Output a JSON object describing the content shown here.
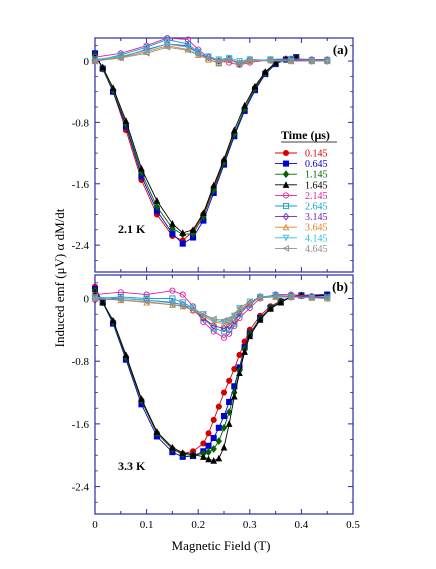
{
  "figure": {
    "ylabel": "Induced emf (μV) α dM/dt",
    "xlabel": "Magnetic Field (T)",
    "legend_title": "Time (μs)",
    "x_ticks": [
      "0",
      "0.1",
      "0.2",
      "0.3",
      "0.4",
      "0.5"
    ],
    "y_ticks": [
      "0",
      "-0.8",
      "-1.6",
      "-2.4"
    ]
  },
  "chart_data": [
    {
      "type": "line",
      "panel_label": "(a)",
      "annotation": "2.1 K",
      "xlim": [
        0,
        0.5
      ],
      "ylim": [
        -2.75,
        0.3
      ],
      "legend_position": "right, middle",
      "grid": false,
      "series": [
        {
          "name": "0.145",
          "color": "#d40000",
          "marker": "filled-circle",
          "x": [
            0,
            0.015,
            0.035,
            0.06,
            0.09,
            0.12,
            0.15,
            0.17,
            0.19,
            0.21,
            0.23,
            0.25,
            0.27,
            0.29,
            0.31,
            0.33,
            0.35,
            0.37,
            0.39
          ],
          "y": [
            0.1,
            -0.1,
            -0.4,
            -0.9,
            -1.55,
            -2.0,
            -2.28,
            -2.34,
            -2.22,
            -2.0,
            -1.65,
            -1.3,
            -0.95,
            -0.62,
            -0.35,
            -0.15,
            -0.02,
            0.02,
            0.05
          ]
        },
        {
          "name": "0.645",
          "color": "#0000d4",
          "marker": "filled-square",
          "x": [
            0,
            0.015,
            0.035,
            0.06,
            0.09,
            0.12,
            0.15,
            0.17,
            0.19,
            0.21,
            0.23,
            0.25,
            0.27,
            0.29,
            0.31,
            0.33,
            0.35,
            0.37,
            0.39
          ],
          "y": [
            0.1,
            -0.1,
            -0.4,
            -0.85,
            -1.5,
            -1.95,
            -2.25,
            -2.38,
            -2.3,
            -2.08,
            -1.72,
            -1.35,
            -0.98,
            -0.65,
            -0.38,
            -0.17,
            -0.04,
            0.02,
            0.05
          ]
        },
        {
          "name": "1.145",
          "color": "#006400",
          "marker": "filled-diamond",
          "x": [
            0,
            0.015,
            0.035,
            0.06,
            0.09,
            0.12,
            0.15,
            0.17,
            0.19,
            0.21,
            0.23,
            0.25,
            0.27,
            0.29,
            0.31,
            0.33,
            0.35,
            0.37,
            0.39
          ],
          "y": [
            0.08,
            -0.1,
            -0.38,
            -0.82,
            -1.45,
            -1.9,
            -2.18,
            -2.26,
            -2.25,
            -2.03,
            -1.68,
            -1.32,
            -0.95,
            -0.62,
            -0.36,
            -0.16,
            -0.03,
            0.02,
            0.04
          ]
        },
        {
          "name": "1.645",
          "color": "#000000",
          "marker": "filled-triangle",
          "x": [
            0,
            0.015,
            0.035,
            0.06,
            0.09,
            0.12,
            0.15,
            0.17,
            0.19,
            0.21,
            0.23,
            0.25,
            0.27,
            0.29,
            0.31,
            0.33,
            0.35,
            0.37,
            0.39
          ],
          "y": [
            0.06,
            -0.08,
            -0.35,
            -0.78,
            -1.4,
            -1.82,
            -2.12,
            -2.24,
            -2.2,
            -1.98,
            -1.62,
            -1.28,
            -0.9,
            -0.58,
            -0.33,
            -0.14,
            -0.02,
            0.03,
            0.04
          ]
        },
        {
          "name": "2.145",
          "color": "#e0209a",
          "marker": "open-circle",
          "x": [
            0,
            0.05,
            0.1,
            0.14,
            0.18,
            0.2,
            0.22,
            0.24,
            0.26,
            0.28,
            0.3,
            0.34,
            0.38,
            0.42,
            0.45
          ],
          "y": [
            0.05,
            0.1,
            0.2,
            0.3,
            0.28,
            0.15,
            0.05,
            0.0,
            -0.02,
            -0.05,
            -0.02,
            0.02,
            0.03,
            0.02,
            0.02
          ]
        },
        {
          "name": "2.645",
          "color": "#10a0c8",
          "marker": "open-square",
          "x": [
            0,
            0.05,
            0.1,
            0.14,
            0.18,
            0.2,
            0.22,
            0.24,
            0.26,
            0.28,
            0.3,
            0.34,
            0.38,
            0.42,
            0.45
          ],
          "y": [
            0.0,
            0.08,
            0.18,
            0.28,
            0.22,
            0.12,
            0.02,
            -0.03,
            0.02,
            -0.04,
            0.0,
            0.02,
            0.02,
            0.01,
            0.01
          ]
        },
        {
          "name": "3.145",
          "color": "#7020c0",
          "marker": "open-diamond",
          "x": [
            0,
            0.05,
            0.1,
            0.14,
            0.18,
            0.2,
            0.22,
            0.24,
            0.26,
            0.28,
            0.3,
            0.34,
            0.38,
            0.42,
            0.45
          ],
          "y": [
            0.0,
            0.05,
            0.15,
            0.22,
            0.2,
            0.1,
            0.05,
            0.0,
            0.03,
            -0.03,
            0.02,
            0.01,
            0.01,
            0.0,
            0.0
          ]
        },
        {
          "name": "3.645",
          "color": "#e08020",
          "marker": "open-triangle",
          "x": [
            0,
            0.05,
            0.1,
            0.14,
            0.18,
            0.2,
            0.22,
            0.24,
            0.26,
            0.28,
            0.3,
            0.34,
            0.38,
            0.42,
            0.45
          ],
          "y": [
            0.0,
            0.05,
            0.12,
            0.2,
            0.15,
            0.08,
            0.02,
            -0.02,
            0.02,
            -0.02,
            0.0,
            0.01,
            0.0,
            0.0,
            0.0
          ]
        },
        {
          "name": "4.145",
          "color": "#30c0e0",
          "marker": "open-inverted-triangle",
          "x": [
            0,
            0.05,
            0.1,
            0.14,
            0.18,
            0.2,
            0.22,
            0.24,
            0.26,
            0.28,
            0.3,
            0.34,
            0.38,
            0.42,
            0.45
          ],
          "y": [
            0.02,
            0.06,
            0.14,
            0.22,
            0.18,
            0.1,
            0.06,
            0.02,
            0.04,
            0.0,
            0.02,
            0.01,
            0.0,
            0.0,
            0.0
          ]
        },
        {
          "name": "4.645",
          "color": "#909090",
          "marker": "open-triangle-left",
          "x": [
            0,
            0.05,
            0.1,
            0.14,
            0.18,
            0.2,
            0.22,
            0.24,
            0.26,
            0.28,
            0.3,
            0.34,
            0.38,
            0.42,
            0.45
          ],
          "y": [
            0.0,
            0.04,
            0.1,
            0.18,
            0.14,
            0.08,
            0.04,
            0.0,
            0.02,
            -0.02,
            0.01,
            0.0,
            0.0,
            0.0,
            0.0
          ]
        }
      ]
    },
    {
      "type": "line",
      "panel_label": "(b)",
      "annotation": "3.3 K",
      "xlim": [
        0,
        0.5
      ],
      "ylim": [
        -2.75,
        0.3
      ],
      "grid": false,
      "series": [
        {
          "name": "0.145",
          "color": "#d40000",
          "marker": "filled-circle",
          "x": [
            0,
            0.015,
            0.035,
            0.06,
            0.09,
            0.12,
            0.15,
            0.17,
            0.19,
            0.21,
            0.22,
            0.23,
            0.24,
            0.25,
            0.26,
            0.27,
            0.28,
            0.29,
            0.3,
            0.32,
            0.34,
            0.36,
            0.38,
            0.4,
            0.45
          ],
          "y": [
            0.15,
            -0.05,
            -0.3,
            -0.75,
            -1.3,
            -1.72,
            -1.92,
            -1.98,
            -1.95,
            -1.85,
            -1.72,
            -1.55,
            -1.38,
            -1.2,
            -1.05,
            -0.9,
            -0.72,
            -0.55,
            -0.4,
            -0.22,
            -0.1,
            -0.03,
            0.02,
            0.04,
            0.05
          ]
        },
        {
          "name": "0.645",
          "color": "#0000d4",
          "marker": "filled-square",
          "x": [
            0,
            0.015,
            0.035,
            0.06,
            0.09,
            0.12,
            0.15,
            0.17,
            0.19,
            0.21,
            0.22,
            0.23,
            0.24,
            0.25,
            0.26,
            0.27,
            0.28,
            0.29,
            0.3,
            0.32,
            0.34,
            0.36,
            0.38,
            0.4,
            0.45
          ],
          "y": [
            0.12,
            -0.05,
            -0.32,
            -0.78,
            -1.35,
            -1.76,
            -1.96,
            -2.02,
            -2.01,
            -1.95,
            -1.88,
            -1.78,
            -1.65,
            -1.5,
            -1.32,
            -1.12,
            -0.88,
            -0.62,
            -0.45,
            -0.25,
            -0.12,
            -0.04,
            0.02,
            0.04,
            0.05
          ]
        },
        {
          "name": "1.145",
          "color": "#006400",
          "marker": "filled-diamond",
          "x": [
            0,
            0.015,
            0.035,
            0.06,
            0.09,
            0.12,
            0.15,
            0.17,
            0.19,
            0.21,
            0.22,
            0.23,
            0.24,
            0.25,
            0.26,
            0.27,
            0.28,
            0.29,
            0.3,
            0.32,
            0.34,
            0.36,
            0.38,
            0.4,
            0.45
          ],
          "y": [
            0.1,
            -0.05,
            -0.3,
            -0.75,
            -1.3,
            -1.72,
            -1.92,
            -1.99,
            -2.0,
            -1.98,
            -1.96,
            -1.92,
            -1.82,
            -1.65,
            -1.45,
            -1.2,
            -0.92,
            -0.65,
            -0.46,
            -0.26,
            -0.12,
            -0.04,
            0.02,
            0.04,
            0.04
          ]
        },
        {
          "name": "1.645",
          "color": "#000000",
          "marker": "filled-triangle",
          "x": [
            0,
            0.015,
            0.035,
            0.06,
            0.09,
            0.12,
            0.15,
            0.17,
            0.19,
            0.21,
            0.22,
            0.23,
            0.24,
            0.25,
            0.26,
            0.27,
            0.28,
            0.29,
            0.3,
            0.32,
            0.34,
            0.36,
            0.38,
            0.4,
            0.45
          ],
          "y": [
            0.08,
            -0.05,
            -0.28,
            -0.72,
            -1.28,
            -1.7,
            -1.9,
            -1.97,
            -1.99,
            -2.02,
            -2.05,
            -2.07,
            -2.04,
            -1.9,
            -1.6,
            -1.25,
            -0.95,
            -0.68,
            -0.48,
            -0.27,
            -0.13,
            -0.05,
            0.02,
            0.04,
            0.04
          ]
        },
        {
          "name": "2.145",
          "color": "#e0209a",
          "marker": "open-circle",
          "x": [
            0,
            0.05,
            0.1,
            0.15,
            0.17,
            0.19,
            0.21,
            0.23,
            0.25,
            0.26,
            0.27,
            0.28,
            0.3,
            0.32,
            0.35,
            0.38,
            0.42,
            0.45
          ],
          "y": [
            0.05,
            0.08,
            0.05,
            0.1,
            0.05,
            -0.1,
            -0.3,
            -0.42,
            -0.5,
            -0.45,
            -0.35,
            -0.25,
            -0.12,
            0.0,
            0.05,
            0.05,
            0.03,
            0.02
          ]
        },
        {
          "name": "2.645",
          "color": "#10a0c8",
          "marker": "open-square",
          "x": [
            0,
            0.05,
            0.1,
            0.15,
            0.17,
            0.19,
            0.21,
            0.23,
            0.25,
            0.26,
            0.27,
            0.28,
            0.3,
            0.32,
            0.35,
            0.38,
            0.42,
            0.45
          ],
          "y": [
            0.0,
            0.02,
            0.0,
            0.0,
            -0.05,
            -0.12,
            -0.25,
            -0.38,
            -0.42,
            -0.4,
            -0.32,
            -0.2,
            -0.08,
            0.02,
            0.04,
            0.03,
            0.02,
            0.02
          ]
        },
        {
          "name": "3.145",
          "color": "#7020c0",
          "marker": "open-diamond",
          "x": [
            0,
            0.05,
            0.1,
            0.15,
            0.17,
            0.19,
            0.21,
            0.23,
            0.25,
            0.26,
            0.27,
            0.28,
            0.3,
            0.32,
            0.35,
            0.38,
            0.42,
            0.45
          ],
          "y": [
            -0.02,
            0.0,
            -0.02,
            -0.05,
            -0.08,
            -0.15,
            -0.25,
            -0.35,
            -0.38,
            -0.35,
            -0.28,
            -0.18,
            -0.06,
            0.02,
            0.03,
            0.03,
            0.02,
            0.01
          ]
        },
        {
          "name": "3.645",
          "color": "#e08020",
          "marker": "open-triangle",
          "x": [
            0,
            0.05,
            0.1,
            0.15,
            0.17,
            0.19,
            0.21,
            0.23,
            0.25,
            0.26,
            0.27,
            0.28,
            0.3,
            0.32,
            0.35,
            0.38,
            0.42,
            0.45
          ],
          "y": [
            0.0,
            -0.02,
            -0.05,
            -0.08,
            -0.1,
            -0.15,
            -0.22,
            -0.3,
            -0.32,
            -0.3,
            -0.25,
            -0.15,
            -0.05,
            0.01,
            0.02,
            0.02,
            0.01,
            0.0
          ]
        },
        {
          "name": "4.145",
          "color": "#30c0e0",
          "marker": "open-inverted-triangle",
          "x": [
            0,
            0.05,
            0.1,
            0.15,
            0.17,
            0.19,
            0.21,
            0.23,
            0.25,
            0.26,
            0.27,
            0.28,
            0.3,
            0.32,
            0.35,
            0.38,
            0.42,
            0.45
          ],
          "y": [
            0.02,
            0.0,
            -0.02,
            -0.06,
            -0.08,
            -0.12,
            -0.2,
            -0.28,
            -0.3,
            -0.28,
            -0.22,
            -0.12,
            -0.04,
            0.02,
            0.03,
            0.02,
            0.01,
            0.0
          ]
        },
        {
          "name": "4.645",
          "color": "#909090",
          "marker": "open-triangle-left",
          "x": [
            0,
            0.05,
            0.1,
            0.15,
            0.17,
            0.19,
            0.21,
            0.23,
            0.25,
            0.26,
            0.27,
            0.28,
            0.3,
            0.32,
            0.35,
            0.38,
            0.42,
            0.45
          ],
          "y": [
            0.0,
            -0.02,
            -0.04,
            -0.08,
            -0.1,
            -0.14,
            -0.2,
            -0.26,
            -0.28,
            -0.26,
            -0.2,
            -0.12,
            -0.04,
            0.01,
            0.02,
            0.02,
            0.01,
            0.0
          ]
        }
      ]
    }
  ]
}
